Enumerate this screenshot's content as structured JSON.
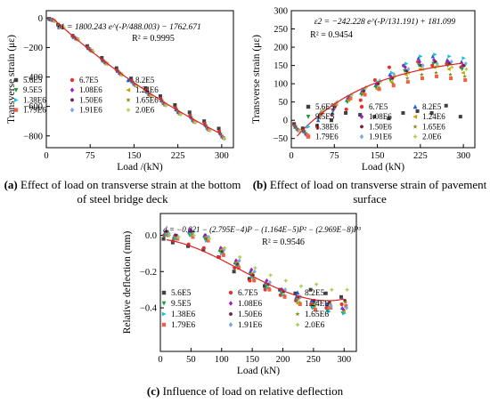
{
  "captions": [
    {
      "tag": "(a)",
      "text": "Effect of load on transverse strain at the bottom of steel bridge deck"
    },
    {
      "tag": "(b)",
      "text": "Effect of load on transverse strain of pavement surface"
    },
    {
      "tag": "(c)",
      "text": "Influence of load on relative deflection"
    }
  ],
  "chart_data": [
    {
      "type": "scatter",
      "xlabel": "Load /(kN)",
      "ylabel": "Transverse strain (με)",
      "xlim": [
        0,
        320
      ],
      "ylim": [
        -880,
        50
      ],
      "xticks": [
        0,
        75,
        150,
        225,
        300
      ],
      "yticks": [
        0,
        -200,
        -400,
        -600,
        -800
      ],
      "equation": "ε1 = 1800.243 e^(-P/488.003) − 1762.671",
      "r2": "R² = 0.9995",
      "x": [
        10,
        25,
        50,
        75,
        100,
        125,
        150,
        175,
        200,
        225,
        250,
        275,
        300
      ],
      "series": [
        {
          "name": "5.6E5",
          "values": [
            -5,
            -45,
            -120,
            -190,
            -270,
            -340,
            -410,
            -475,
            -530,
            -590,
            -640,
            -700,
            -750
          ]
        },
        {
          "name": "6.7E5",
          "values": [
            -8,
            -50,
            -125,
            -200,
            -285,
            -355,
            -425,
            -490,
            -550,
            -610,
            -660,
            -715,
            -770
          ]
        },
        {
          "name": "8.2E5",
          "values": [
            -10,
            -52,
            -130,
            -205,
            -290,
            -360,
            -430,
            -500,
            -560,
            -620,
            -670,
            -725,
            -780
          ]
        },
        {
          "name": "9.5E5",
          "values": [
            -12,
            -55,
            -133,
            -210,
            -295,
            -365,
            -440,
            -505,
            -565,
            -625,
            -680,
            -735,
            -790
          ]
        },
        {
          "name": "1.08E6",
          "values": [
            -13,
            -57,
            -135,
            -212,
            -298,
            -368,
            -445,
            -510,
            -572,
            -630,
            -685,
            -740,
            -795
          ]
        },
        {
          "name": "1.24E6",
          "values": [
            -14,
            -58,
            -137,
            -215,
            -300,
            -372,
            -448,
            -515,
            -575,
            -635,
            -690,
            -745,
            -800
          ]
        },
        {
          "name": "1.38E6",
          "values": [
            -15,
            -60,
            -140,
            -218,
            -303,
            -375,
            -450,
            -518,
            -580,
            -640,
            -695,
            -750,
            -805
          ]
        },
        {
          "name": "1.50E6",
          "values": [
            -16,
            -61,
            -141,
            -220,
            -305,
            -378,
            -453,
            -521,
            -583,
            -643,
            -698,
            -753,
            -808
          ]
        },
        {
          "name": "1.65E6",
          "values": [
            -17,
            -62,
            -143,
            -222,
            -307,
            -380,
            -455,
            -524,
            -586,
            -646,
            -701,
            -756,
            -811
          ]
        },
        {
          "name": "1.79E6",
          "values": [
            -18,
            -63,
            -144,
            -224,
            -309,
            -382,
            -458,
            -527,
            -589,
            -649,
            -704,
            -759,
            -814
          ]
        },
        {
          "name": "1.91E6",
          "values": [
            -19,
            -64,
            -146,
            -226,
            -311,
            -385,
            -460,
            -530,
            -592,
            -652,
            -707,
            -762,
            -817
          ]
        },
        {
          "name": "2.0E6",
          "values": [
            -20,
            -65,
            -147,
            -228,
            -313,
            -387,
            -462,
            -532,
            -594,
            -654,
            -709,
            -764,
            -820
          ]
        }
      ]
    },
    {
      "type": "scatter",
      "xlabel": "Load (kN)",
      "ylabel": "Transverse strain (με)",
      "xlim": [
        0,
        320
      ],
      "ylim": [
        -75,
        300
      ],
      "xticks": [
        0,
        75,
        150,
        225,
        300
      ],
      "yticks": [
        -50,
        0,
        50,
        100,
        150,
        200,
        250,
        300
      ],
      "equation": "ε2 = −242.228 e^(-P/131.191) + 181.099",
      "r2": "R² = 0.9454",
      "x": [
        10,
        25,
        50,
        75,
        100,
        125,
        150,
        175,
        200,
        225,
        250,
        275,
        300
      ],
      "series": [
        {
          "name": "5.6E5",
          "values": [
            -10,
            -22,
            -15,
            0,
            20,
            15,
            10,
            5,
            20,
            25,
            20,
            40,
            10
          ]
        },
        {
          "name": "6.7E5",
          "values": [
            -15,
            -28,
            -20,
            15,
            30,
            55,
            110,
            145,
            150,
            160,
            150,
            155,
            145
          ]
        },
        {
          "name": "8.2E5",
          "values": [
            -18,
            -30,
            0,
            20,
            55,
            75,
            95,
            125,
            150,
            170,
            175,
            165,
            160
          ]
        },
        {
          "name": "9.5E5",
          "values": [
            -20,
            -32,
            5,
            25,
            50,
            70,
            90,
            110,
            135,
            150,
            155,
            150,
            140
          ]
        },
        {
          "name": "1.08E6",
          "values": [
            -22,
            -35,
            10,
            30,
            60,
            80,
            100,
            120,
            145,
            160,
            165,
            160,
            150
          ]
        },
        {
          "name": "1.24E6",
          "values": [
            -24,
            -36,
            12,
            35,
            55,
            75,
            85,
            105,
            125,
            140,
            145,
            140,
            130
          ]
        },
        {
          "name": "1.38E6",
          "values": [
            -25,
            -38,
            15,
            40,
            65,
            85,
            105,
            130,
            155,
            175,
            180,
            175,
            170
          ]
        },
        {
          "name": "1.50E6",
          "values": [
            -26,
            -39,
            18,
            38,
            62,
            80,
            100,
            115,
            135,
            150,
            160,
            155,
            150
          ]
        },
        {
          "name": "1.65E6",
          "values": [
            -27,
            -40,
            20,
            42,
            58,
            72,
            90,
            100,
            115,
            125,
            130,
            125,
            120
          ]
        },
        {
          "name": "1.79E6",
          "values": [
            -28,
            -41,
            22,
            45,
            60,
            70,
            85,
            95,
            105,
            115,
            120,
            115,
            110
          ]
        },
        {
          "name": "1.91E6",
          "values": [
            -29,
            -42,
            25,
            48,
            68,
            88,
            108,
            125,
            140,
            150,
            155,
            160,
            155
          ]
        },
        {
          "name": "2.0E6",
          "values": [
            -30,
            -44,
            28,
            50,
            70,
            90,
            105,
            120,
            130,
            140,
            150,
            145,
            140
          ]
        }
      ]
    },
    {
      "type": "scatter",
      "xlabel": "Load (kN)",
      "ylabel": "Relative deflection (mm)",
      "xlim": [
        0,
        320
      ],
      "ylim": [
        -0.64,
        0.12
      ],
      "xticks": [
        0,
        50,
        100,
        150,
        200,
        250,
        300
      ],
      "yticks": [
        0.0,
        -0.2,
        -0.4
      ],
      "equation": "d = −0.021 − (2.795E−4)P − (1.164E−5)P² − (2.969E−8)P³",
      "r2": "R² = 0.9546",
      "x": [
        10,
        25,
        50,
        75,
        100,
        125,
        150,
        175,
        200,
        225,
        250,
        275,
        300
      ],
      "series": [
        {
          "name": "5.6E5",
          "values": [
            -0.02,
            -0.04,
            -0.06,
            -0.08,
            -0.12,
            -0.2,
            -0.24,
            -0.28,
            -0.3,
            -0.32,
            -0.3,
            -0.32,
            -0.34
          ]
        },
        {
          "name": "6.7E5",
          "values": [
            0.0,
            -0.03,
            -0.05,
            -0.07,
            -0.12,
            -0.18,
            -0.25,
            -0.3,
            -0.33,
            -0.36,
            -0.38,
            -0.4,
            -0.38
          ]
        },
        {
          "name": "8.2E5",
          "values": [
            0.01,
            -0.01,
            0.02,
            0.0,
            -0.08,
            -0.15,
            -0.2,
            -0.26,
            -0.3,
            -0.34,
            -0.36,
            -0.38,
            -0.4
          ]
        },
        {
          "name": "9.5E5",
          "values": [
            0.0,
            -0.02,
            0.0,
            -0.02,
            -0.09,
            -0.16,
            -0.22,
            -0.28,
            -0.32,
            -0.36,
            -0.4,
            -0.42,
            -0.43
          ]
        },
        {
          "name": "1.08E6",
          "values": [
            0.02,
            0.0,
            0.03,
            0.0,
            -0.07,
            -0.14,
            -0.19,
            -0.25,
            -0.3,
            -0.35,
            -0.38,
            -0.4,
            -0.41
          ]
        },
        {
          "name": "1.24E6",
          "values": [
            0.01,
            -0.01,
            0.01,
            -0.01,
            -0.08,
            -0.15,
            -0.21,
            -0.27,
            -0.31,
            -0.35,
            -0.38,
            -0.4,
            -0.42
          ]
        },
        {
          "name": "1.38E6",
          "values": [
            0.0,
            -0.02,
            0.0,
            -0.03,
            -0.1,
            -0.17,
            -0.23,
            -0.29,
            -0.33,
            -0.37,
            -0.4,
            -0.42,
            -0.43
          ]
        },
        {
          "name": "1.50E6",
          "values": [
            0.02,
            0.0,
            0.02,
            -0.02,
            -0.09,
            -0.16,
            -0.22,
            -0.27,
            -0.31,
            -0.34,
            -0.36,
            -0.37,
            -0.36
          ]
        },
        {
          "name": "1.65E6",
          "values": [
            0.01,
            -0.02,
            0.01,
            -0.02,
            -0.1,
            -0.17,
            -0.24,
            -0.29,
            -0.33,
            -0.37,
            -0.39,
            -0.38,
            -0.37
          ]
        },
        {
          "name": "1.79E6",
          "values": [
            0.0,
            -0.02,
            -0.01,
            -0.03,
            -0.11,
            -0.18,
            -0.25,
            -0.3,
            -0.34,
            -0.38,
            -0.41,
            -0.4,
            -0.39
          ]
        },
        {
          "name": "1.91E6",
          "values": [
            0.01,
            -0.01,
            0.02,
            -0.01,
            -0.08,
            -0.14,
            -0.2,
            -0.26,
            -0.3,
            -0.34,
            -0.37,
            -0.39,
            -0.4
          ]
        },
        {
          "name": "2.0E6",
          "values": [
            0.0,
            -0.01,
            0.0,
            -0.02,
            -0.07,
            -0.12,
            -0.18,
            -0.22,
            -0.25,
            -0.28,
            -0.27,
            -0.3,
            -0.3
          ]
        }
      ]
    }
  ],
  "series_styles": [
    {
      "color": "#404040",
      "marker": "square"
    },
    {
      "color": "#e8302a",
      "marker": "circle"
    },
    {
      "color": "#1f5fd6",
      "marker": "triangle-up"
    },
    {
      "color": "#1e9e3a",
      "marker": "triangle-down"
    },
    {
      "color": "#a020c0",
      "marker": "diamond"
    },
    {
      "color": "#c8a000",
      "marker": "triangle-left"
    },
    {
      "color": "#18c0d8",
      "marker": "triangle-right"
    },
    {
      "color": "#702838",
      "marker": "hexagon"
    },
    {
      "color": "#8a8a18",
      "marker": "star"
    },
    {
      "color": "#f0604a",
      "marker": "square"
    },
    {
      "color": "#78a8e8",
      "marker": "diamond"
    },
    {
      "color": "#a8d048",
      "marker": "plus"
    }
  ],
  "fit_color": "#e02020"
}
